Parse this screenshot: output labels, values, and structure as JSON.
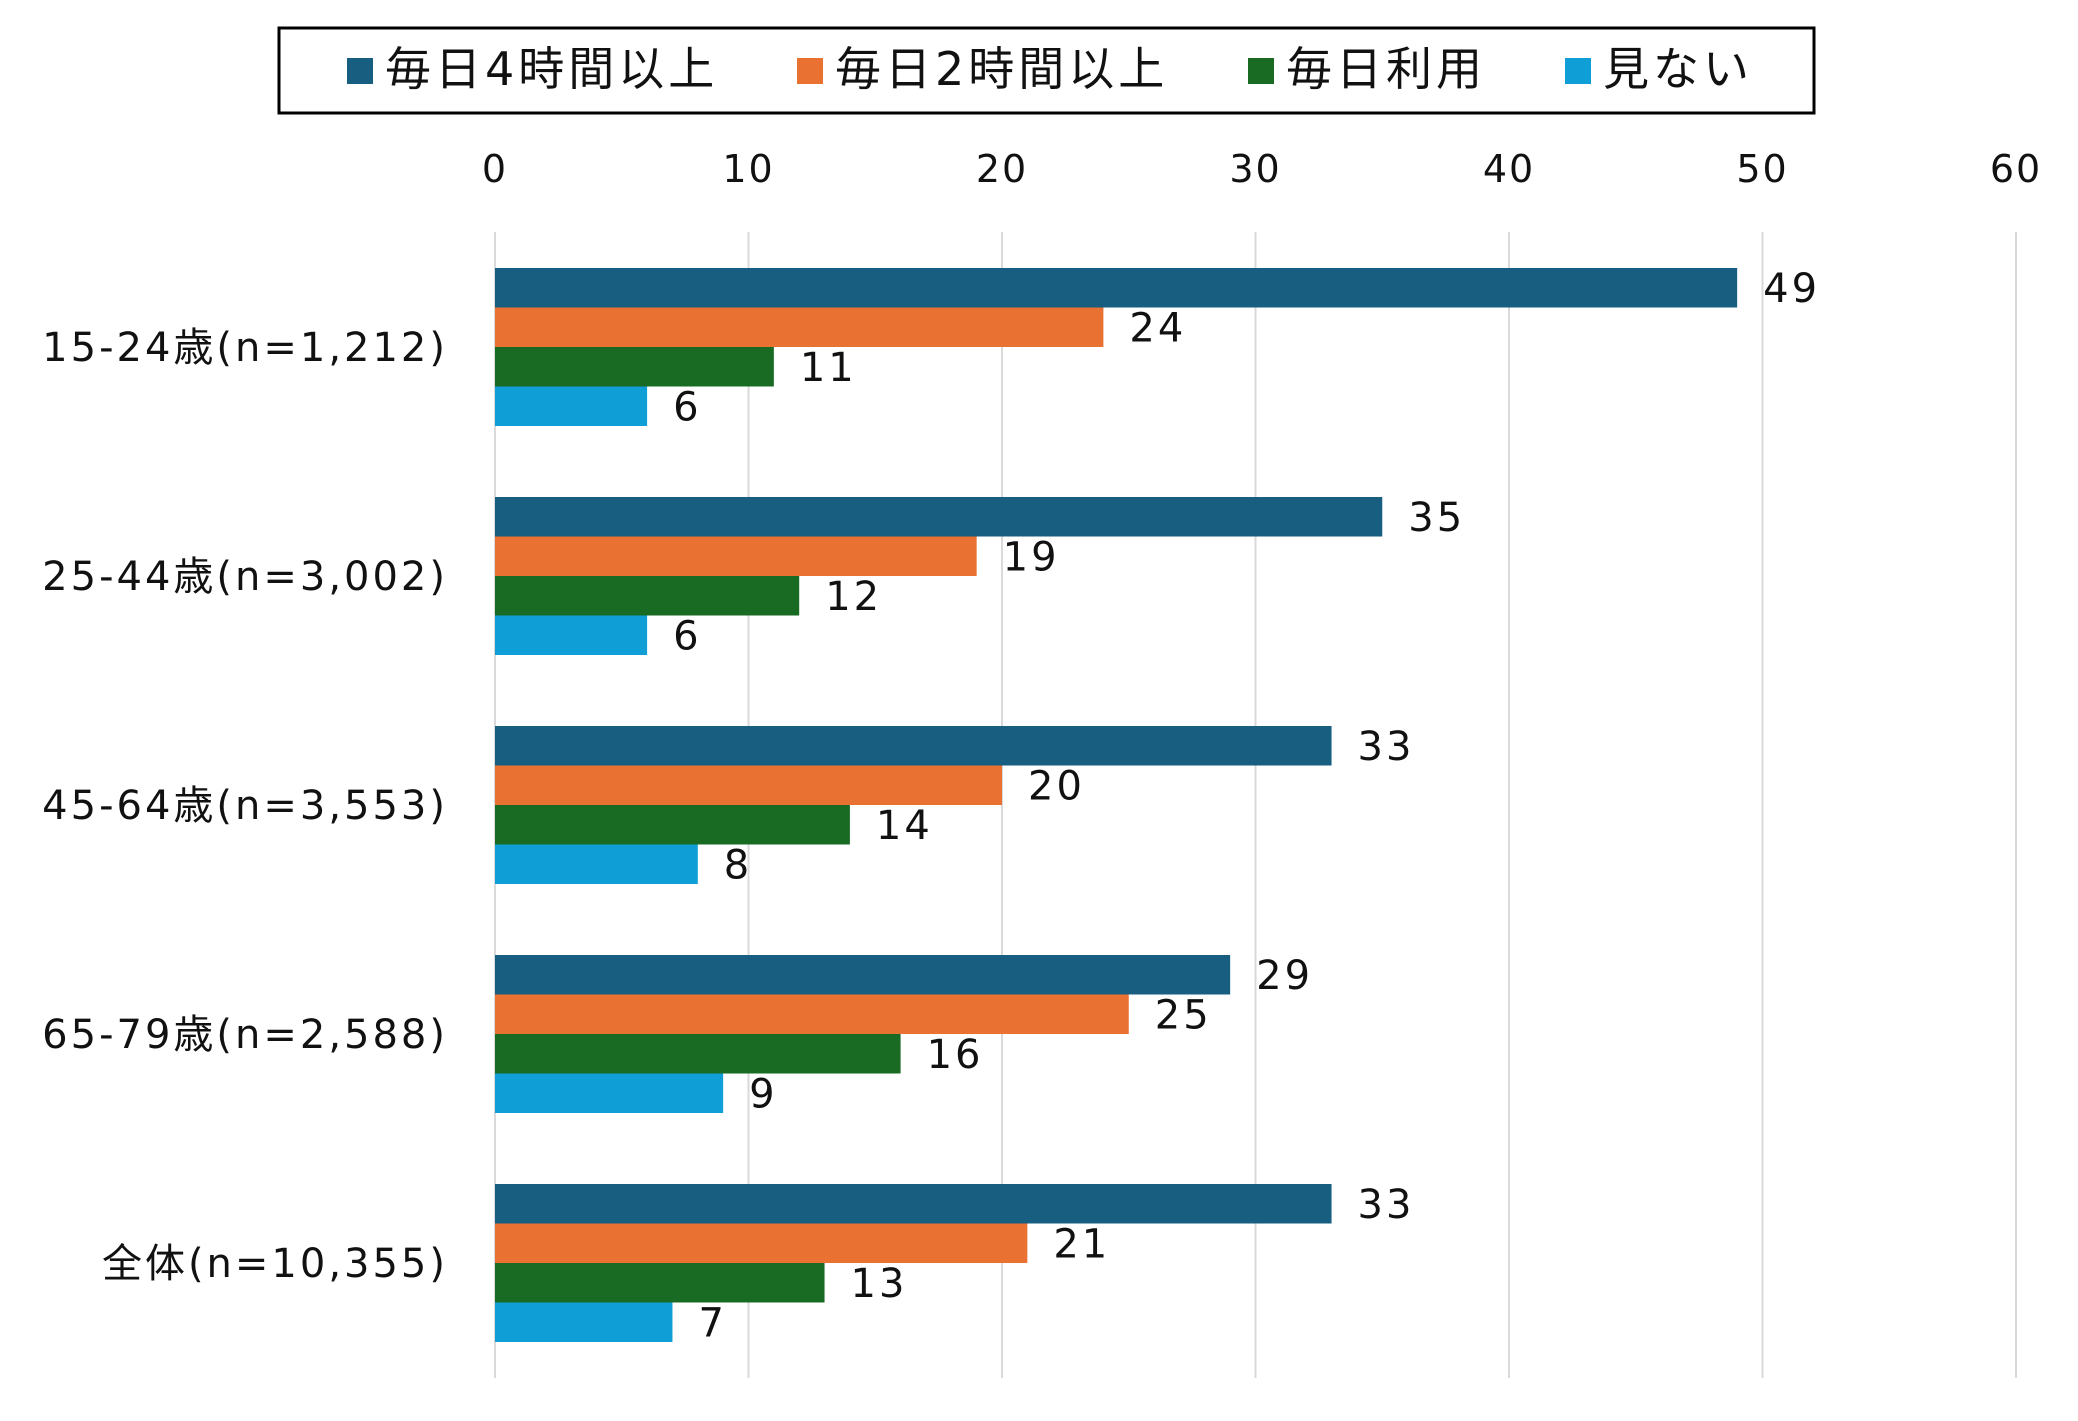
{
  "chart_data": {
    "type": "bar",
    "orientation": "horizontal",
    "categories": [
      "15-24歳(n=1,212)",
      "25-44歳(n=3,002)",
      "45-64歳(n=3,553)",
      "65-79歳(n=2,588)",
      "全体(n=10,355)"
    ],
    "series": [
      {
        "name": "毎日4時間以上",
        "color": "#175e80",
        "values": [
          49,
          35,
          33,
          29,
          33
        ]
      },
      {
        "name": "毎日2時間以上",
        "color": "#e97132",
        "values": [
          24,
          19,
          20,
          25,
          21
        ]
      },
      {
        "name": "毎日利用",
        "color": "#196b24",
        "values": [
          11,
          12,
          14,
          16,
          13
        ]
      },
      {
        "name": "見ない",
        "color": "#0f9ed5",
        "values": [
          6,
          6,
          8,
          9,
          7
        ]
      }
    ],
    "xlim": [
      0,
      60
    ],
    "ticks": [
      0,
      10,
      20,
      30,
      40,
      50,
      60
    ],
    "grid": true,
    "legend_position": "top",
    "axis_position": "top"
  }
}
